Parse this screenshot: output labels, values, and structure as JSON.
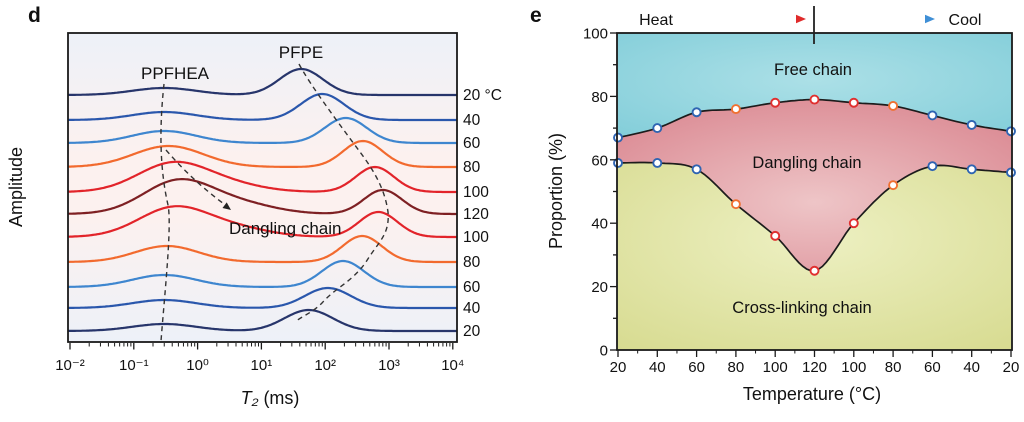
{
  "figure": {
    "panel_d": {
      "letter": "d",
      "y_axis_label": "Amplitude",
      "x_axis_label_symbol": "T₂",
      "x_axis_label_unit": " (ms)",
      "x_tick_labels": [
        "10⁻²",
        "10⁻¹",
        "10⁰",
        "10¹",
        "10²",
        "10³",
        "10⁴"
      ],
      "left_peak_label": "PPFHEA",
      "right_peak_label": "PFPE",
      "annotation": "Dangling chain",
      "temperature_labels": [
        "20 °C",
        "40",
        "60",
        "80",
        "100",
        "120",
        "100",
        "80",
        "60",
        "40",
        "20"
      ]
    },
    "panel_e": {
      "letter": "e",
      "header": {
        "heat_label": "Heat",
        "cool_label": "Cool"
      },
      "region_labels": {
        "free": "Free chain",
        "dangling": "Dangling chain",
        "crosslink": "Cross-linking chain"
      },
      "y_axis_label": "Proportion (%)",
      "x_axis_label": "Temperature (°C)",
      "y_tick_labels": [
        "0",
        "20",
        "40",
        "60",
        "80",
        "100"
      ],
      "x_tick_labels": [
        "20",
        "40",
        "60",
        "80",
        "100",
        "120",
        "100",
        "80",
        "60",
        "40",
        "20"
      ]
    }
  },
  "colors": {
    "navy": "#27356b",
    "blue": "#2a57ac",
    "light_blue": "#3e86cf",
    "orange": "#f26a2e",
    "red": "#e2242a",
    "dark_red": "#7e2023",
    "frame": "#1a1a1a",
    "boundary": "#1c1c1c",
    "free_region": "#7fccd8",
    "free_region_light": "#ace0e7",
    "dangling_region": "#d9848e",
    "dangling_region_light": "#eec5c7",
    "crosslink_region": "#d5d98c",
    "crosslink_region_light": "#edf0c2",
    "marker_blue": "#2e64b2",
    "marker_red": "#e03030",
    "marker_orange": "#f07030",
    "heat_arrow_start": "#7b86c9",
    "heat_arrow_end": "#e02b2b",
    "cool_arrow_start": "#e02b2b",
    "cool_arrow_end": "#3f8fd6",
    "panel_d_bg_top": "#edf1f8",
    "panel_d_bg_mid": "#fcf1ef"
  },
  "chart_data": [
    {
      "panel": "d",
      "type": "line",
      "title": "NMR T2 relaxation spectra during heat/cool cycle",
      "x_scale": "log",
      "xlim_ms": [
        0.01,
        10000
      ],
      "xlabel": "T2 (ms)",
      "ylabel": "Amplitude",
      "peak_assignments": {
        "left": "PPFHEA",
        "right": "PFPE"
      },
      "annotation": "Dangling chain",
      "curves": [
        {
          "temperature_C": 20,
          "phase": "heating",
          "color_key": "navy",
          "peaks": [
            {
              "center_ms": 0.3,
              "amplitude": 7,
              "width_log": 0.5
            },
            {
              "center_ms": 42,
              "amplitude": 26,
              "width_log": 0.34
            }
          ]
        },
        {
          "temperature_C": 40,
          "phase": "heating",
          "color_key": "blue",
          "peaks": [
            {
              "center_ms": 0.3,
              "amplitude": 8,
              "width_log": 0.5
            },
            {
              "center_ms": 90,
              "amplitude": 26,
              "width_log": 0.34
            }
          ]
        },
        {
          "temperature_C": 60,
          "phase": "heating",
          "color_key": "light_blue",
          "peaks": [
            {
              "center_ms": 0.3,
              "amplitude": 12,
              "width_log": 0.5
            },
            {
              "center_ms": 210,
              "amplitude": 25,
              "width_log": 0.33
            }
          ]
        },
        {
          "temperature_C": 80,
          "phase": "heating",
          "color_key": "orange",
          "peaks": [
            {
              "center_ms": 0.35,
              "amplitude": 21,
              "width_log": 0.55
            },
            {
              "center_ms": 390,
              "amplitude": 26,
              "width_log": 0.31
            }
          ]
        },
        {
          "temperature_C": 100,
          "phase": "heating",
          "color_key": "red",
          "peaks": [
            {
              "center_ms": 0.4,
              "amplitude": 28,
              "width_log": 0.55
            },
            {
              "center_ms": 3,
              "amplitude": 7,
              "width_log": 0.55
            },
            {
              "center_ms": 600,
              "amplitude": 25,
              "width_log": 0.3
            }
          ]
        },
        {
          "temperature_C": 120,
          "phase": "heating",
          "color_key": "dark_red",
          "peaks": [
            {
              "center_ms": 0.5,
              "amplitude": 33,
              "width_log": 0.55
            },
            {
              "center_ms": 5,
              "amplitude": 9,
              "width_log": 0.55
            },
            {
              "center_ms": 800,
              "amplitude": 24,
              "width_log": 0.3
            }
          ]
        },
        {
          "temperature_C": 100,
          "phase": "cooling",
          "color_key": "red",
          "peaks": [
            {
              "center_ms": 0.42,
              "amplitude": 29,
              "width_log": 0.55
            },
            {
              "center_ms": 4,
              "amplitude": 8,
              "width_log": 0.55
            },
            {
              "center_ms": 680,
              "amplitude": 25,
              "width_log": 0.3
            }
          ]
        },
        {
          "temperature_C": 80,
          "phase": "cooling",
          "color_key": "orange",
          "peaks": [
            {
              "center_ms": 0.33,
              "amplitude": 16,
              "width_log": 0.5
            },
            {
              "center_ms": 380,
              "amplitude": 26,
              "width_log": 0.31
            }
          ]
        },
        {
          "temperature_C": 60,
          "phase": "cooling",
          "color_key": "light_blue",
          "peaks": [
            {
              "center_ms": 0.3,
              "amplitude": 12,
              "width_log": 0.5
            },
            {
              "center_ms": 190,
              "amplitude": 26,
              "width_log": 0.33
            }
          ]
        },
        {
          "temperature_C": 40,
          "phase": "cooling",
          "color_key": "blue",
          "peaks": [
            {
              "center_ms": 0.3,
              "amplitude": 8,
              "width_log": 0.5
            },
            {
              "center_ms": 110,
              "amplitude": 20,
              "width_log": 0.36
            }
          ]
        },
        {
          "temperature_C": 20,
          "phase": "cooling",
          "color_key": "navy",
          "peaks": [
            {
              "center_ms": 0.3,
              "amplitude": 7,
              "width_log": 0.5
            },
            {
              "center_ms": 55,
              "amplitude": 21,
              "width_log": 0.38
            }
          ]
        }
      ]
    },
    {
      "panel": "e",
      "type": "area",
      "title": "Chain population phase map over heat/cool cycle",
      "xlabel": "Temperature (°C)",
      "ylabel": "Proportion (%)",
      "ylim": [
        0,
        100
      ],
      "x_temperatures_C": [
        20,
        40,
        60,
        80,
        100,
        120,
        100,
        80,
        60,
        40,
        20
      ],
      "cycle": "heating then cooling",
      "boundaries": {
        "free_dangling": [
          67,
          70,
          75,
          76,
          78,
          79,
          78,
          77,
          74,
          71,
          69
        ],
        "dangling_crosslink": [
          59,
          59,
          57,
          46,
          36,
          25,
          40,
          52,
          58,
          57,
          56
        ]
      },
      "point_color_keys": [
        "marker_blue",
        "marker_blue",
        "marker_blue",
        "marker_orange",
        "marker_red",
        "marker_red",
        "marker_red",
        "marker_orange",
        "marker_blue",
        "marker_blue",
        "marker_blue"
      ],
      "regions": [
        "Free chain",
        "Dangling chain",
        "Cross-linking chain"
      ]
    }
  ]
}
